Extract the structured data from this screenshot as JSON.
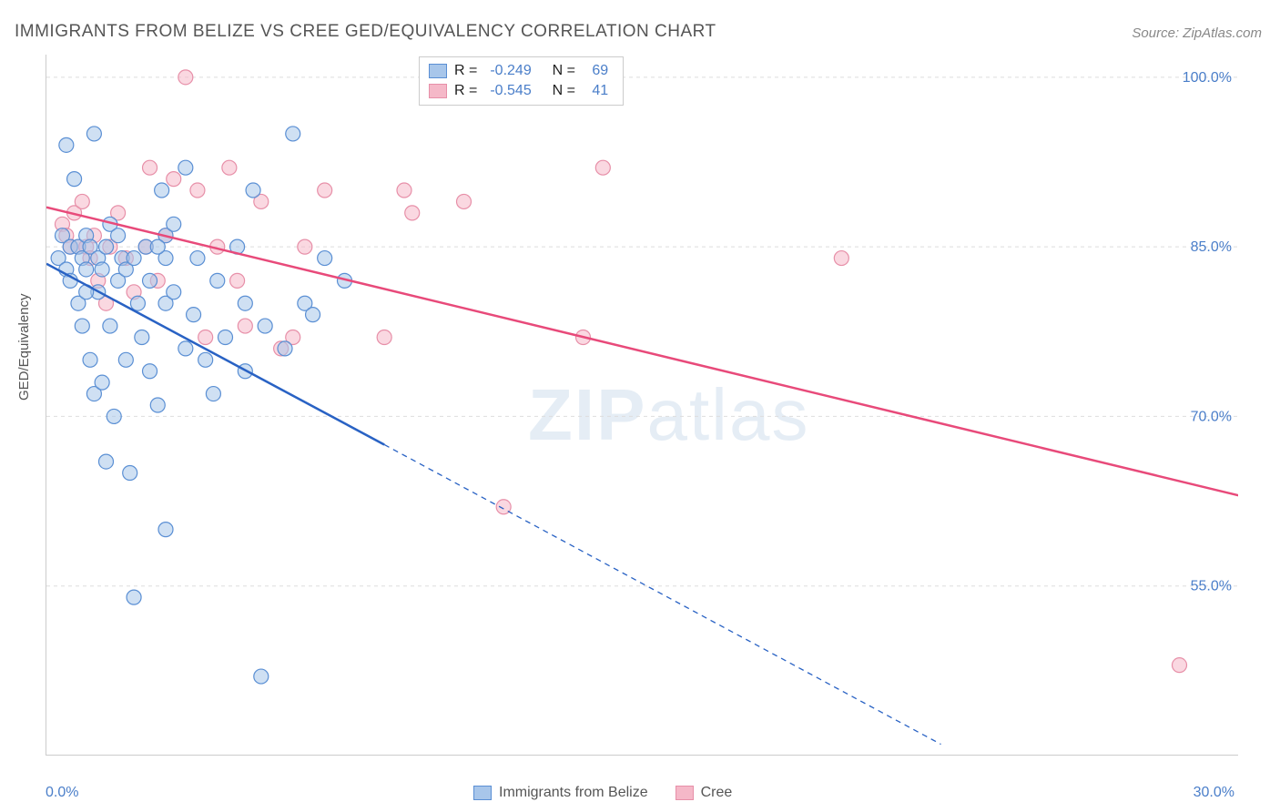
{
  "title": "IMMIGRANTS FROM BELIZE VS CREE GED/EQUIVALENCY CORRELATION CHART",
  "source_prefix": "Source:",
  "source_name": "ZipAtlas.com",
  "watermark_a": "ZIP",
  "watermark_b": "atlas",
  "axis": {
    "y_title": "GED/Equivalency",
    "x_min_label": "0.0%",
    "x_max_label": "30.0%",
    "xlim": [
      0,
      30
    ],
    "ylim": [
      40,
      102
    ],
    "y_ticks": [
      55.0,
      70.0,
      85.0,
      100.0
    ],
    "y_tick_labels": [
      "55.0%",
      "70.0%",
      "85.0%",
      "100.0%"
    ],
    "x_ticks": [
      0,
      5,
      10,
      15,
      20,
      25,
      30
    ]
  },
  "colors": {
    "series_a_fill": "#a8c6ea",
    "series_a_stroke": "#5a8fd4",
    "series_a_line": "#2962c4",
    "series_b_fill": "#f5b8c8",
    "series_b_stroke": "#e78fa8",
    "series_b_line": "#e84a7a",
    "grid": "#dddddd",
    "axis_line": "#cccccc",
    "tick_label": "#4a7ec9",
    "title_text": "#555555",
    "watermark": "#e5edf5",
    "background": "#ffffff"
  },
  "marker": {
    "radius": 8,
    "fill_opacity": 0.55,
    "stroke_width": 1.2
  },
  "line_style": {
    "solid_width": 2.5,
    "dash_pattern": "6,5",
    "dash_width": 1.3
  },
  "legend_top": {
    "rows": [
      {
        "swatch": "a",
        "r_label": "R =",
        "r_value": "-0.249",
        "n_label": "N =",
        "n_value": "69"
      },
      {
        "swatch": "b",
        "r_label": "R =",
        "r_value": "-0.545",
        "n_label": "N =",
        "n_value": "41"
      }
    ]
  },
  "legend_bottom": {
    "items": [
      {
        "swatch": "a",
        "label": "Immigrants from Belize"
      },
      {
        "swatch": "b",
        "label": "Cree"
      }
    ]
  },
  "series_a": {
    "name": "Immigrants from Belize",
    "R": -0.249,
    "N": 69,
    "regression": {
      "x1": 0,
      "y1": 83.5,
      "x2_solid": 8.5,
      "y2_solid": 67.5,
      "x2": 22.5,
      "y2": 41
    },
    "points": [
      [
        0.3,
        84
      ],
      [
        0.4,
        86
      ],
      [
        0.5,
        83
      ],
      [
        0.5,
        94
      ],
      [
        0.6,
        85
      ],
      [
        0.6,
        82
      ],
      [
        0.7,
        91
      ],
      [
        0.8,
        80
      ],
      [
        0.8,
        85
      ],
      [
        0.9,
        78
      ],
      [
        0.9,
        84
      ],
      [
        1.0,
        83
      ],
      [
        1.0,
        86
      ],
      [
        1.1,
        75
      ],
      [
        1.1,
        85
      ],
      [
        1.2,
        72
      ],
      [
        1.2,
        95
      ],
      [
        1.3,
        81
      ],
      [
        1.3,
        84
      ],
      [
        1.4,
        73
      ],
      [
        1.4,
        83
      ],
      [
        1.5,
        66
      ],
      [
        1.5,
        85
      ],
      [
        1.6,
        78
      ],
      [
        1.6,
        87
      ],
      [
        1.7,
        70
      ],
      [
        1.8,
        82
      ],
      [
        1.8,
        86
      ],
      [
        1.9,
        84
      ],
      [
        2.0,
        75
      ],
      [
        2.0,
        83
      ],
      [
        2.1,
        65
      ],
      [
        2.2,
        54
      ],
      [
        2.2,
        84
      ],
      [
        2.3,
        80
      ],
      [
        2.4,
        77
      ],
      [
        2.5,
        85
      ],
      [
        2.6,
        82
      ],
      [
        2.6,
        74
      ],
      [
        2.8,
        71
      ],
      [
        2.9,
        90
      ],
      [
        3.0,
        84
      ],
      [
        3.0,
        60
      ],
      [
        3.0,
        80
      ],
      [
        3.0,
        86
      ],
      [
        3.2,
        81
      ],
      [
        3.2,
        87
      ],
      [
        3.5,
        76
      ],
      [
        3.5,
        92
      ],
      [
        3.7,
        79
      ],
      [
        3.8,
        84
      ],
      [
        4.0,
        75
      ],
      [
        4.2,
        72
      ],
      [
        4.3,
        82
      ],
      [
        4.5,
        77
      ],
      [
        4.8,
        85
      ],
      [
        5.0,
        74
      ],
      [
        5.0,
        80
      ],
      [
        5.2,
        90
      ],
      [
        5.4,
        47
      ],
      [
        5.5,
        78
      ],
      [
        6.0,
        76
      ],
      [
        6.2,
        95
      ],
      [
        6.5,
        80
      ],
      [
        6.7,
        79
      ],
      [
        7.0,
        84
      ],
      [
        7.5,
        82
      ],
      [
        2.8,
        85
      ],
      [
        1.0,
        81
      ]
    ]
  },
  "series_b": {
    "name": "Cree",
    "R": -0.545,
    "N": 41,
    "regression": {
      "x1": 0,
      "y1": 88.5,
      "x2": 30,
      "y2": 63
    },
    "points": [
      [
        0.4,
        87
      ],
      [
        0.5,
        86
      ],
      [
        0.6,
        85
      ],
      [
        0.7,
        88
      ],
      [
        0.8,
        85
      ],
      [
        0.9,
        89
      ],
      [
        1.0,
        85
      ],
      [
        1.1,
        84
      ],
      [
        1.2,
        86
      ],
      [
        1.3,
        82
      ],
      [
        1.5,
        80
      ],
      [
        1.6,
        85
      ],
      [
        1.8,
        88
      ],
      [
        2.0,
        84
      ],
      [
        2.2,
        81
      ],
      [
        2.5,
        85
      ],
      [
        2.6,
        92
      ],
      [
        2.8,
        82
      ],
      [
        3.0,
        86
      ],
      [
        3.2,
        91
      ],
      [
        3.5,
        100
      ],
      [
        3.8,
        90
      ],
      [
        4.0,
        77
      ],
      [
        4.3,
        85
      ],
      [
        4.6,
        92
      ],
      [
        4.8,
        82
      ],
      [
        5.0,
        78
      ],
      [
        5.4,
        89
      ],
      [
        5.9,
        76
      ],
      [
        6.2,
        77
      ],
      [
        6.5,
        85
      ],
      [
        7.0,
        90
      ],
      [
        8.5,
        77
      ],
      [
        9.0,
        90
      ],
      [
        9.2,
        88
      ],
      [
        10.5,
        89
      ],
      [
        11.5,
        62
      ],
      [
        13.5,
        77
      ],
      [
        14.0,
        92
      ],
      [
        20.0,
        84
      ],
      [
        28.5,
        48
      ]
    ]
  }
}
